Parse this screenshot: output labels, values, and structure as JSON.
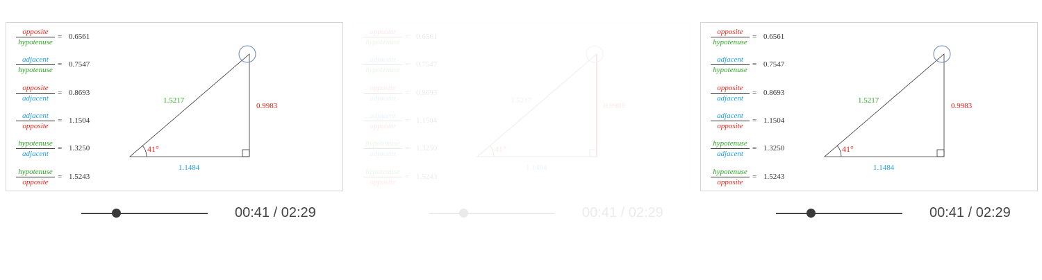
{
  "colors": {
    "opposite": "#e2231a",
    "adjacent": "#1e9fe6",
    "hypotenuse": "#2aa520"
  },
  "terms": {
    "opposite": "opposite",
    "adjacent": "adjacent",
    "hypotenuse": "hypotenuse"
  },
  "ratios": [
    {
      "num": "opposite",
      "den": "hypotenuse",
      "value": "0.6561"
    },
    {
      "num": "adjacent",
      "den": "hypotenuse",
      "value": "0.7547"
    },
    {
      "num": "opposite",
      "den": "adjacent",
      "value": "0.8693"
    },
    {
      "num": "adjacent",
      "den": "opposite",
      "value": "1.1504"
    },
    {
      "num": "hypotenuse",
      "den": "adjacent",
      "value": "1.3250"
    },
    {
      "num": "hypotenuse",
      "den": "opposite",
      "value": "1.5243"
    }
  ],
  "equals": "=",
  "triangle": {
    "hypotenuse": "1.5217",
    "opposite": "0.9983",
    "adjacent": "1.1484",
    "angle": "41°"
  },
  "player": {
    "time": "00:41 / 02:29",
    "progress": 0.275
  }
}
